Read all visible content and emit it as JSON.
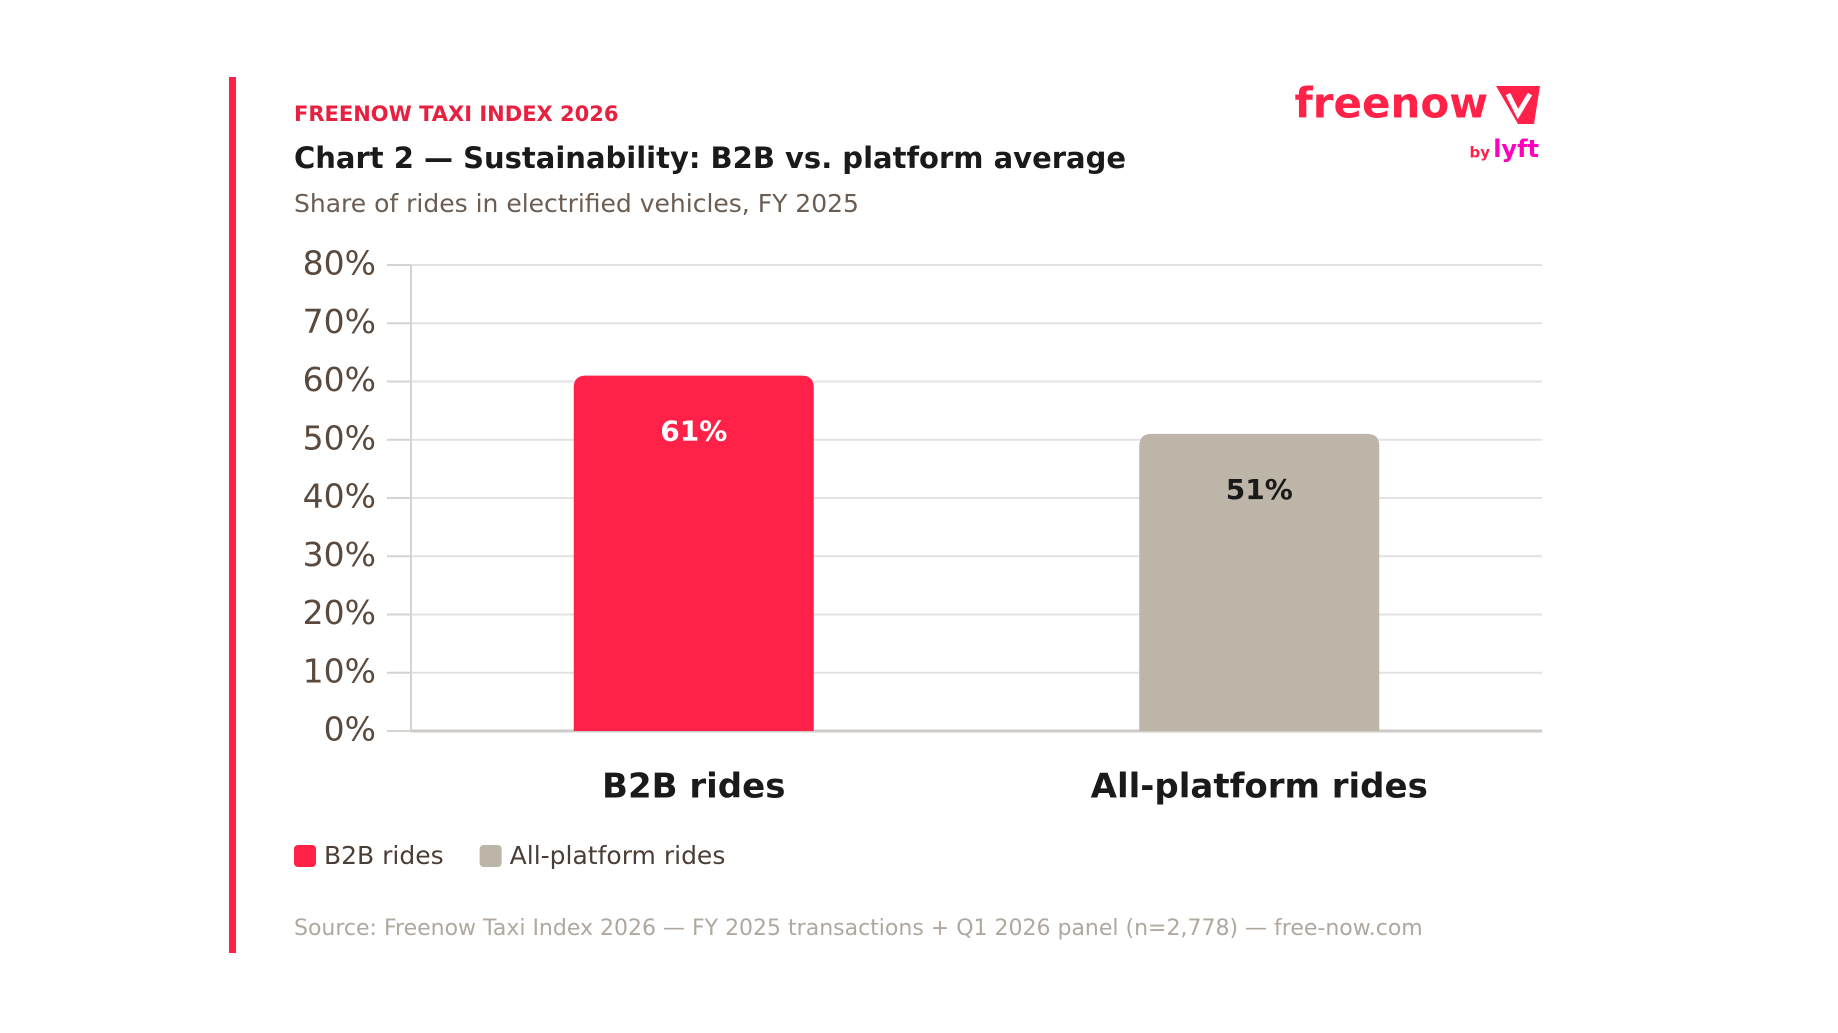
{
  "logo": {
    "brand": "freenow",
    "by": "by",
    "partner": "lyft"
  },
  "chart_data": {
    "type": "bar",
    "kicker": "FREENOW TAXI INDEX 2026",
    "title": "Chart 2 — Sustainability: B2B vs. platform average",
    "subtitle": "Share of rides in electrified vehicles, FY 2025",
    "categories": [
      "B2B rides",
      "All-platform rides"
    ],
    "values": [
      61,
      51
    ],
    "value_labels": [
      "61%",
      "51%"
    ],
    "colors": [
      "#ff2147",
      "#bdb5a8"
    ],
    "label_colors": [
      "#ffffff",
      "#1a1a1a"
    ],
    "ylim": [
      0,
      80
    ],
    "yticks": [
      {
        "value": 0,
        "label": "0%"
      },
      {
        "value": 10,
        "label": "10%"
      },
      {
        "value": 20,
        "label": "20%"
      },
      {
        "value": 30,
        "label": "30%"
      },
      {
        "value": 40,
        "label": "40%"
      },
      {
        "value": 50,
        "label": "50%"
      },
      {
        "value": 60,
        "label": "60%"
      },
      {
        "value": 70,
        "label": "70%"
      },
      {
        "value": 80,
        "label": "80%"
      }
    ],
    "grid": true,
    "legend": "bottom-left",
    "source": "Source: Freenow Taxi Index 2026 — FY 2025 transactions + Q1 2026 panel (n=2,778) — free-now.com"
  }
}
